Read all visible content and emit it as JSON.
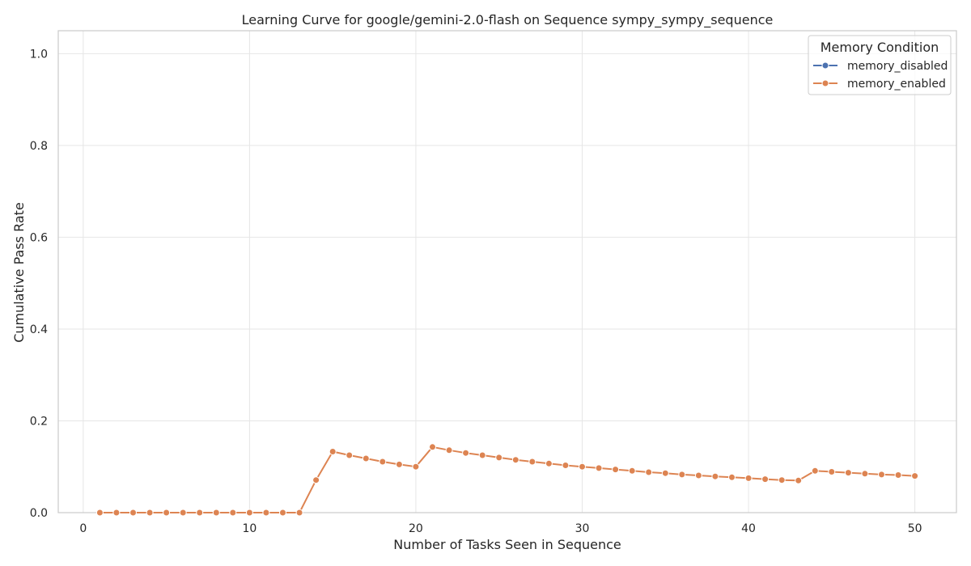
{
  "chart_data": {
    "type": "line",
    "title": "Learning Curve for google/gemini-2.0-flash on Sequence sympy_sympy_sequence",
    "xlabel": "Number of Tasks Seen in Sequence",
    "ylabel": "Cumulative Pass Rate",
    "xlim": [
      -1.5,
      52.5
    ],
    "ylim": [
      0,
      1.05
    ],
    "xticks": [
      0,
      10,
      20,
      30,
      40,
      50
    ],
    "yticks": [
      0.0,
      0.2,
      0.4,
      0.6,
      0.8,
      1.0
    ],
    "ytick_labels": [
      "0.0",
      "0.2",
      "0.4",
      "0.6",
      "0.8",
      "1.0"
    ],
    "grid": true,
    "legend": {
      "title": "Memory Condition",
      "position": "top-right"
    },
    "series": [
      {
        "name": "memory_disabled",
        "color": "#4c72b0",
        "x": [],
        "y": []
      },
      {
        "name": "memory_enabled",
        "color": "#dd8452",
        "x": [
          1,
          2,
          3,
          4,
          5,
          6,
          7,
          8,
          9,
          10,
          11,
          12,
          13,
          14,
          15,
          16,
          17,
          18,
          19,
          20,
          21,
          22,
          23,
          24,
          25,
          26,
          27,
          28,
          29,
          30,
          31,
          32,
          33,
          34,
          35,
          36,
          37,
          38,
          39,
          40,
          41,
          42,
          43,
          44,
          45,
          46,
          47,
          48,
          49,
          50
        ],
        "y": [
          0,
          0,
          0,
          0,
          0,
          0,
          0,
          0,
          0,
          0,
          0,
          0,
          0,
          0.071,
          0.133,
          0.125,
          0.118,
          0.111,
          0.105,
          0.1,
          0.143,
          0.136,
          0.13,
          0.125,
          0.12,
          0.115,
          0.111,
          0.107,
          0.103,
          0.1,
          0.097,
          0.094,
          0.091,
          0.088,
          0.086,
          0.083,
          0.081,
          0.079,
          0.077,
          0.075,
          0.073,
          0.071,
          0.07,
          0.091,
          0.089,
          0.087,
          0.085,
          0.083,
          0.082,
          0.08
        ]
      }
    ]
  }
}
